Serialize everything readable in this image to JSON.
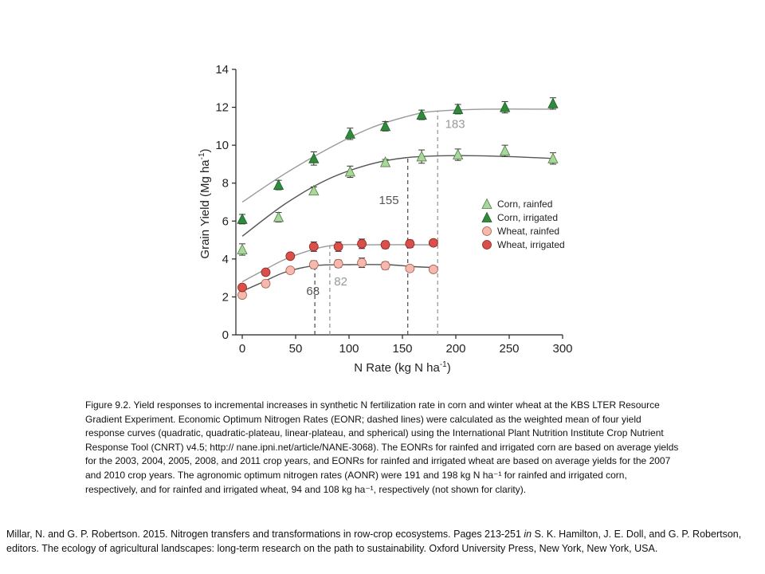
{
  "chart_data": {
    "type": "scatter",
    "xlabel": "N Rate (kg N ha",
    "xlabel_sup": "-1",
    "xlabel_end": ")",
    "ylabel": "Grain Yield (Mg  ha",
    "ylabel_sup": "-1",
    "ylabel_end": ")",
    "xlim": [
      0,
      300
    ],
    "ylim": [
      0,
      14
    ],
    "xticks": [
      0,
      50,
      100,
      150,
      200,
      250,
      300
    ],
    "yticks": [
      0,
      2,
      4,
      6,
      8,
      10,
      12,
      14
    ],
    "grid": false,
    "legend_position": "right",
    "series": [
      {
        "name": "Corn, rainfed",
        "marker": "triangle",
        "fill": "#a9d69a",
        "stroke": "#4d7a3f",
        "curve_color": "#555555",
        "points": [
          {
            "x": 0,
            "y": 4.5,
            "err": 0.3
          },
          {
            "x": 34,
            "y": 6.2,
            "err": 0.25
          },
          {
            "x": 67,
            "y": 7.6,
            "err": 0.2
          },
          {
            "x": 101,
            "y": 8.6,
            "err": 0.3
          },
          {
            "x": 134,
            "y": 9.1,
            "err": 0.15
          },
          {
            "x": 168,
            "y": 9.4,
            "err": 0.35
          },
          {
            "x": 202,
            "y": 9.5,
            "err": 0.3
          },
          {
            "x": 246,
            "y": 9.7,
            "err": 0.3
          },
          {
            "x": 291,
            "y": 9.3,
            "err": 0.3
          }
        ],
        "curve": [
          [
            0,
            5.2
          ],
          [
            40,
            6.9
          ],
          [
            80,
            8.2
          ],
          [
            120,
            9.0
          ],
          [
            155,
            9.35
          ],
          [
            200,
            9.45
          ],
          [
            250,
            9.4
          ],
          [
            291,
            9.3
          ]
        ]
      },
      {
        "name": "Corn, irrigated",
        "marker": "triangle",
        "fill": "#2f8a3a",
        "stroke": "#1d5b24",
        "curve_color": "#999999",
        "points": [
          {
            "x": 0,
            "y": 6.1,
            "err": 0.25
          },
          {
            "x": 34,
            "y": 7.9,
            "err": 0.25
          },
          {
            "x": 67,
            "y": 9.3,
            "err": 0.35
          },
          {
            "x": 101,
            "y": 10.6,
            "err": 0.3
          },
          {
            "x": 134,
            "y": 11.0,
            "err": 0.25
          },
          {
            "x": 168,
            "y": 11.6,
            "err": 0.25
          },
          {
            "x": 202,
            "y": 11.9,
            "err": 0.25
          },
          {
            "x": 246,
            "y": 12.0,
            "err": 0.3
          },
          {
            "x": 291,
            "y": 12.2,
            "err": 0.3
          }
        ],
        "curve": [
          [
            0,
            7.0
          ],
          [
            40,
            8.5
          ],
          [
            80,
            9.8
          ],
          [
            120,
            10.9
          ],
          [
            160,
            11.6
          ],
          [
            183,
            11.8
          ],
          [
            230,
            11.9
          ],
          [
            291,
            11.9
          ]
        ]
      },
      {
        "name": "Wheat, rainfed",
        "marker": "circle",
        "fill": "#f6b9ad",
        "stroke": "#a45d50",
        "curve_color": "#555555",
        "points": [
          {
            "x": 0,
            "y": 2.1,
            "err": 0.15
          },
          {
            "x": 22,
            "y": 2.7,
            "err": 0.15
          },
          {
            "x": 45,
            "y": 3.4,
            "err": 0.15
          },
          {
            "x": 67,
            "y": 3.7,
            "err": 0.2
          },
          {
            "x": 90,
            "y": 3.75,
            "err": 0.2
          },
          {
            "x": 112,
            "y": 3.8,
            "err": 0.25
          },
          {
            "x": 134,
            "y": 3.65,
            "err": 0.2
          },
          {
            "x": 157,
            "y": 3.5,
            "err": 0.15
          },
          {
            "x": 179,
            "y": 3.45,
            "err": 0.15
          }
        ],
        "curve": [
          [
            0,
            2.3
          ],
          [
            20,
            2.8
          ],
          [
            40,
            3.3
          ],
          [
            68,
            3.65
          ],
          [
            100,
            3.7
          ],
          [
            135,
            3.7
          ],
          [
            160,
            3.6
          ],
          [
            179,
            3.55
          ]
        ]
      },
      {
        "name": "Wheat, irrigated",
        "marker": "circle",
        "fill": "#d9504a",
        "stroke": "#8a2420",
        "curve_color": "#999999",
        "points": [
          {
            "x": 0,
            "y": 2.5,
            "err": 0.15
          },
          {
            "x": 22,
            "y": 3.3,
            "err": 0.15
          },
          {
            "x": 45,
            "y": 4.15,
            "err": 0.15
          },
          {
            "x": 67,
            "y": 4.65,
            "err": 0.25
          },
          {
            "x": 90,
            "y": 4.65,
            "err": 0.25
          },
          {
            "x": 112,
            "y": 4.8,
            "err": 0.25
          },
          {
            "x": 134,
            "y": 4.75,
            "err": 0.2
          },
          {
            "x": 157,
            "y": 4.8,
            "err": 0.2
          },
          {
            "x": 179,
            "y": 4.85,
            "err": 0.15
          }
        ],
        "curve": [
          [
            0,
            2.8
          ],
          [
            20,
            3.4
          ],
          [
            45,
            4.1
          ],
          [
            82,
            4.7
          ],
          [
            120,
            4.75
          ],
          [
            160,
            4.75
          ],
          [
            179,
            4.75
          ]
        ]
      }
    ],
    "eonr_lines": [
      {
        "x": 68,
        "label": "68",
        "label_x": 60,
        "label_y": 2.1,
        "color": "#555555",
        "ymax": 3.65
      },
      {
        "x": 82,
        "label": "82",
        "label_x": 86,
        "label_y": 2.6,
        "color": "#999999",
        "ymax": 4.7
      },
      {
        "x": 155,
        "label": "155",
        "label_x": 128,
        "label_y": 6.9,
        "color": "#555555",
        "ymax": 9.35
      },
      {
        "x": 183,
        "label": "183",
        "label_x": 190,
        "label_y": 10.9,
        "color": "#999999",
        "ymax": 11.8
      }
    ]
  },
  "caption": "Figure 9.2. Yield responses to incremental increases in synthetic N fertilization rate in corn and winter wheat at the KBS LTER Resource Gradient Experiment. Economic Optimum Nitrogen Rates (EONR; dashed lines) were calculated as the weighted mean of four yield response curves (quadratic, quadratic-plateau, linear-plateau, and spherical) using the International Plant Nutrition Institute Crop Nutrient Response Tool (CNRT) v4.5; http:// nane.ipni.net/article/NANE-3068). The EONRs for rainfed and irrigated corn are based on average yields for the 2003, 2004, 2005, 2008, and 2011 crop years, and EONRs for rainfed and irrigated wheat are based on average yields for the 2007 and 2010 crop years. The agronomic optimum nitrogen rates (AONR) were 191 and 198 kg N ha⁻¹ for rainfed and irrigated corn, respectively, and for rainfed and irrigated wheat, 94 and 108 kg ha⁻¹, respectively (not shown for clarity).",
  "citation": {
    "part1": "Millar, N. and G. P. Robertson. 2015. Nitrogen transfers and transformations in row-crop ecosystems. Pages 213-251 ",
    "in": "in",
    "part2": " S. K. Hamilton, J. E. Doll, and G. P. Robertson, editors. The ecology of agricultural landscapes: long-term research on the path to sustainability. Oxford University Press, New York, New York, USA."
  }
}
